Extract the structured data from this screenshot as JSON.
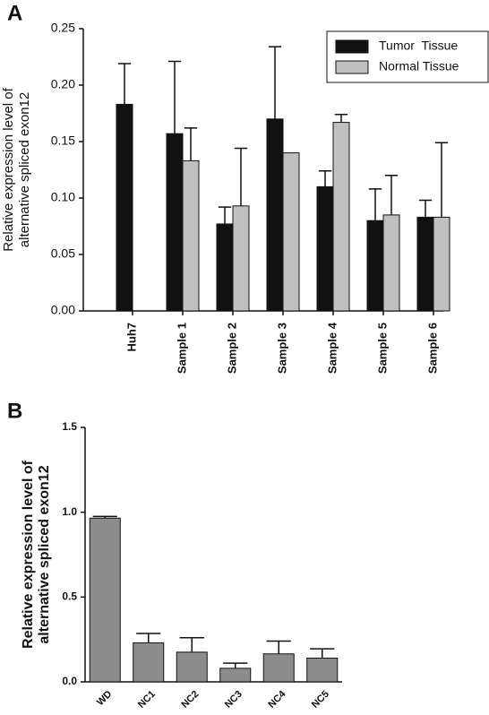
{
  "chart_data": [
    {
      "type": "bar",
      "panel_label": "A",
      "ylabel": [
        "Relative expression level of",
        "alternative spliced exon12"
      ],
      "categories": [
        "Huh7",
        "Sample 1",
        "Sample 2",
        "Sample 3",
        "Sample 4",
        "Sample 5",
        "Sample 6"
      ],
      "series": [
        {
          "name": "Tumor  Tissue",
          "color": "#111111",
          "values": [
            0.183,
            0.157,
            0.077,
            0.17,
            0.11,
            0.08,
            0.083
          ],
          "errors": [
            0.036,
            0.064,
            0.015,
            0.064,
            0.014,
            0.028,
            0.015
          ]
        },
        {
          "name": "Normal Tissue",
          "color": "#c0c0c0",
          "values": [
            null,
            0.133,
            0.093,
            0.14,
            0.167,
            0.085,
            0.083
          ],
          "errors": [
            null,
            0.029,
            0.051,
            null,
            0.007,
            0.035,
            0.066
          ]
        }
      ],
      "ylim": [
        0,
        0.25
      ],
      "yticks": [
        {
          "value": 0,
          "label": "0.00"
        },
        {
          "value": 0.05,
          "label": "0.05"
        },
        {
          "value": 0.1,
          "label": "0.10"
        },
        {
          "value": 0.15,
          "label": "0.15"
        },
        {
          "value": 0.2,
          "label": "0.20"
        },
        {
          "value": 0.25,
          "label": "0.25"
        }
      ],
      "legend": "top-right"
    },
    {
      "type": "bar",
      "panel_label": "B",
      "ylabel": [
        "Relative expression level of",
        "alternative spliced exon12"
      ],
      "categories": [
        "WD",
        "NC1",
        "NC2",
        "NC3",
        "NC4",
        "NC5"
      ],
      "series": [
        {
          "color": "#8c8c8c",
          "values": [
            0.965,
            0.23,
            0.175,
            0.08,
            0.165,
            0.14
          ],
          "errors": [
            0.01,
            0.055,
            0.085,
            0.03,
            0.075,
            0.055
          ]
        }
      ],
      "ylim": [
        0,
        1.5
      ],
      "yticks": [
        {
          "value": 0,
          "label": "0.0"
        },
        {
          "value": 0.5,
          "label": "0.5"
        },
        {
          "value": 1,
          "label": "1.0"
        },
        {
          "value": 1.5,
          "label": "1.5"
        }
      ]
    }
  ]
}
